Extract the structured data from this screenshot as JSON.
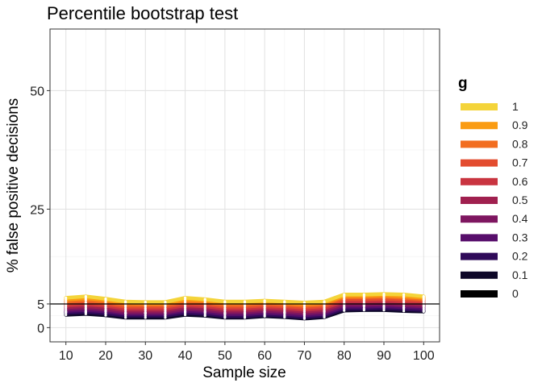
{
  "chart_data": {
    "type": "line",
    "title": "Percentile bootstrap test",
    "xlabel": "Sample size",
    "ylabel": "% false positive decisions",
    "x": [
      10,
      15,
      20,
      25,
      30,
      35,
      40,
      45,
      50,
      55,
      60,
      65,
      70,
      75,
      80,
      85,
      90,
      95,
      100
    ],
    "xticks": [
      10,
      20,
      30,
      40,
      50,
      60,
      70,
      80,
      90,
      100
    ],
    "yticks": [
      0,
      5,
      25,
      50
    ],
    "xlim": [
      6,
      104
    ],
    "ylim": [
      -3,
      63
    ],
    "reference_line": 5,
    "grid": true,
    "legend_title": "g",
    "legend_position": "right",
    "series": [
      {
        "name": "1",
        "color": "#F4D43A",
        "values": [
          6.3,
          6.6,
          6.1,
          5.5,
          5.4,
          5.4,
          6.3,
          6.0,
          5.5,
          5.5,
          5.7,
          5.5,
          5.3,
          5.5,
          7.0,
          7.0,
          7.1,
          7.0,
          6.6
        ]
      },
      {
        "name": "0.9",
        "color": "#FA9C13",
        "values": [
          5.9,
          6.2,
          5.8,
          5.2,
          5.1,
          5.1,
          5.9,
          5.7,
          5.2,
          5.2,
          5.4,
          5.2,
          5.0,
          5.2,
          6.7,
          6.7,
          6.8,
          6.6,
          6.3
        ]
      },
      {
        "name": "0.8",
        "color": "#F26D1F",
        "values": [
          5.5,
          5.8,
          5.4,
          4.8,
          4.8,
          4.8,
          5.5,
          5.3,
          4.8,
          4.8,
          5.1,
          4.9,
          4.6,
          4.9,
          6.4,
          6.4,
          6.5,
          6.3,
          6.0
        ]
      },
      {
        "name": "0.7",
        "color": "#E34C2F",
        "values": [
          5.1,
          5.3,
          5.0,
          4.4,
          4.4,
          4.4,
          5.1,
          4.9,
          4.4,
          4.4,
          4.7,
          4.5,
          4.2,
          4.5,
          6.0,
          6.0,
          6.1,
          5.9,
          5.7
        ]
      },
      {
        "name": "0.6",
        "color": "#C93440",
        "values": [
          4.7,
          4.9,
          4.6,
          4.0,
          4.0,
          4.0,
          4.7,
          4.5,
          4.0,
          4.0,
          4.3,
          4.1,
          3.8,
          4.1,
          5.6,
          5.6,
          5.7,
          5.5,
          5.3
        ]
      },
      {
        "name": "0.5",
        "color": "#A0204F",
        "values": [
          4.3,
          4.5,
          4.2,
          3.6,
          3.6,
          3.6,
          4.3,
          4.1,
          3.6,
          3.6,
          3.9,
          3.7,
          3.4,
          3.7,
          5.2,
          5.2,
          5.3,
          5.1,
          4.9
        ]
      },
      {
        "name": "0.4",
        "color": "#7E1660",
        "values": [
          3.9,
          4.1,
          3.8,
          3.2,
          3.2,
          3.2,
          3.9,
          3.7,
          3.2,
          3.2,
          3.5,
          3.3,
          3.0,
          3.3,
          4.8,
          4.8,
          4.9,
          4.7,
          4.5
        ]
      },
      {
        "name": "0.3",
        "color": "#570E6B",
        "values": [
          3.5,
          3.7,
          3.4,
          2.9,
          2.9,
          2.9,
          3.5,
          3.3,
          2.8,
          2.8,
          3.1,
          2.9,
          2.6,
          2.9,
          4.4,
          4.4,
          4.5,
          4.3,
          4.1
        ]
      },
      {
        "name": "0.2",
        "color": "#2F0A59",
        "values": [
          3.1,
          3.3,
          3.0,
          2.5,
          2.5,
          2.5,
          3.1,
          2.9,
          2.4,
          2.4,
          2.7,
          2.5,
          2.2,
          2.5,
          4.0,
          4.0,
          4.1,
          3.9,
          3.7
        ]
      },
      {
        "name": "0.1",
        "color": "#0D0728",
        "values": [
          2.7,
          2.9,
          2.6,
          2.1,
          2.1,
          2.1,
          2.7,
          2.5,
          2.1,
          2.1,
          2.4,
          2.2,
          1.9,
          2.2,
          3.6,
          3.7,
          3.7,
          3.5,
          3.4
        ]
      },
      {
        "name": "0",
        "color": "#000000",
        "values": [
          3.3,
          3.3,
          3.5,
          3.0,
          3.1,
          3.2,
          3.4,
          3.3,
          3.0,
          3.0,
          3.4,
          3.2,
          2.9,
          3.4,
          4.3,
          4.7,
          4.4,
          4.2,
          4.6
        ]
      }
    ]
  }
}
